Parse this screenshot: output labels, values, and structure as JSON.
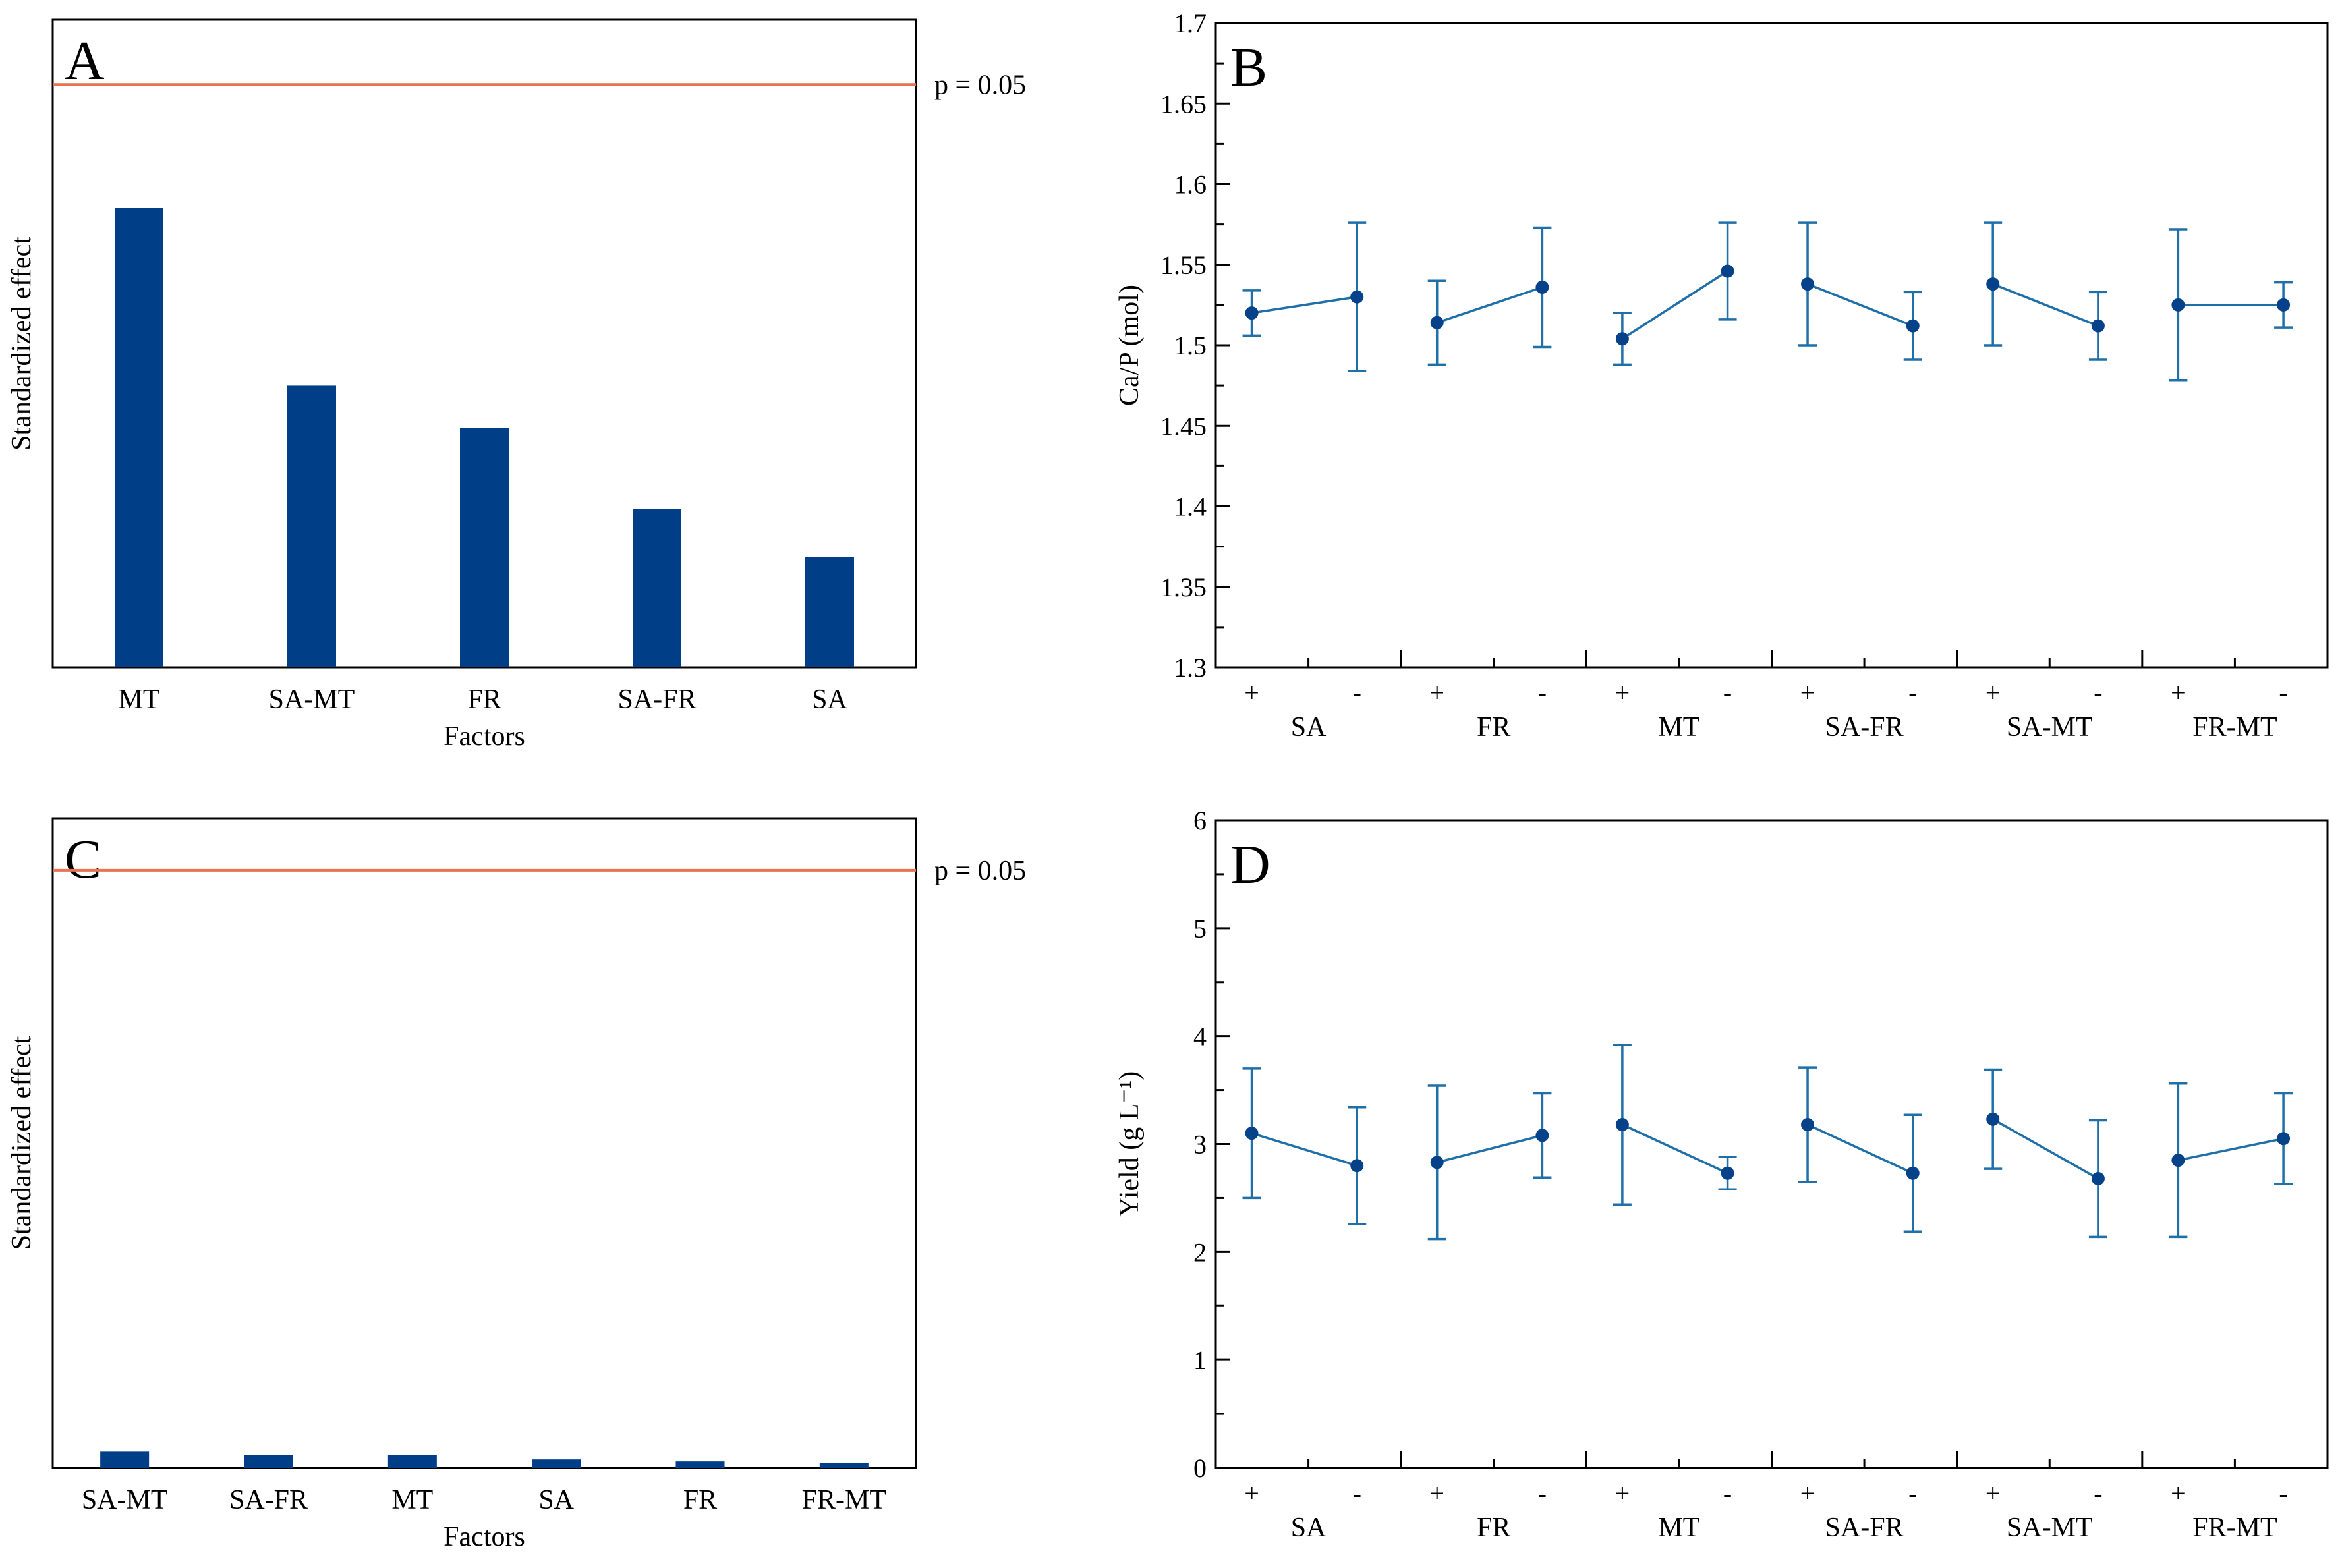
{
  "colors": {
    "bar": "#003f87",
    "threshold": "#e8734f",
    "series": "#1f6fa8",
    "marker": "#06428a"
  },
  "chart_data": [
    {
      "panel": "A",
      "type": "bar",
      "categories": [
        "MT",
        "SA-MT",
        "FR",
        "SA-FR",
        "SA"
      ],
      "values": [
        0.71,
        0.435,
        0.37,
        0.245,
        0.17
      ],
      "ylim": [
        0,
        1
      ],
      "threshold": {
        "value": 0.9,
        "label": "p = 0.05"
      },
      "xlabel": "Factors",
      "ylabel": "Standardized effect",
      "grid": false
    },
    {
      "panel": "B",
      "type": "line",
      "ylabel": "Ca/P (mol)",
      "ylim": [
        1.3,
        1.7
      ],
      "yticks": [
        "1.3",
        "1.35",
        "1.4",
        "1.45",
        "1.5",
        "1.55",
        "1.6",
        "1.65",
        "1.7"
      ],
      "groups": [
        "SA",
        "FR",
        "MT",
        "SA-FR",
        "SA-MT",
        "FR-MT"
      ],
      "levels": [
        "+",
        "-"
      ],
      "series": [
        {
          "group": "SA",
          "points": [
            {
              "y": 1.52,
              "lo": 1.506,
              "hi": 1.534
            },
            {
              "y": 1.53,
              "lo": 1.484,
              "hi": 1.576
            }
          ]
        },
        {
          "group": "FR",
          "points": [
            {
              "y": 1.514,
              "lo": 1.488,
              "hi": 1.54
            },
            {
              "y": 1.536,
              "lo": 1.499,
              "hi": 1.573
            }
          ]
        },
        {
          "group": "MT",
          "points": [
            {
              "y": 1.504,
              "lo": 1.488,
              "hi": 1.52
            },
            {
              "y": 1.546,
              "lo": 1.516,
              "hi": 1.576
            }
          ]
        },
        {
          "group": "SA-FR",
          "points": [
            {
              "y": 1.538,
              "lo": 1.5,
              "hi": 1.576
            },
            {
              "y": 1.512,
              "lo": 1.491,
              "hi": 1.533
            }
          ]
        },
        {
          "group": "SA-MT",
          "points": [
            {
              "y": 1.538,
              "lo": 1.5,
              "hi": 1.576
            },
            {
              "y": 1.512,
              "lo": 1.491,
              "hi": 1.533
            }
          ]
        },
        {
          "group": "FR-MT",
          "points": [
            {
              "y": 1.525,
              "lo": 1.478,
              "hi": 1.572
            },
            {
              "y": 1.525,
              "lo": 1.511,
              "hi": 1.539
            }
          ]
        }
      ],
      "grid": false
    },
    {
      "panel": "C",
      "type": "bar",
      "categories": [
        "SA-MT",
        "SA-FR",
        "MT",
        "SA",
        "FR",
        "FR-MT"
      ],
      "values": [
        0.025,
        0.02,
        0.02,
        0.013,
        0.01,
        0.008
      ],
      "ylim": [
        0,
        1
      ],
      "threshold": {
        "value": 0.92,
        "label": "p = 0.05"
      },
      "xlabel": "Factors",
      "ylabel": "Standardized effect",
      "grid": false
    },
    {
      "panel": "D",
      "type": "line",
      "ylabel": "Yield (g L⁻¹)",
      "ylim": [
        0,
        6
      ],
      "yticks": [
        "0",
        "1",
        "2",
        "3",
        "4",
        "5",
        "6"
      ],
      "groups": [
        "SA",
        "FR",
        "MT",
        "SA-FR",
        "SA-MT",
        "FR-MT"
      ],
      "levels": [
        "+",
        "-"
      ],
      "series": [
        {
          "group": "SA",
          "points": [
            {
              "y": 3.1,
              "lo": 2.5,
              "hi": 3.7
            },
            {
              "y": 2.8,
              "lo": 2.26,
              "hi": 3.34
            }
          ]
        },
        {
          "group": "FR",
          "points": [
            {
              "y": 2.83,
              "lo": 2.12,
              "hi": 3.54
            },
            {
              "y": 3.08,
              "lo": 2.69,
              "hi": 3.47
            }
          ]
        },
        {
          "group": "MT",
          "points": [
            {
              "y": 3.18,
              "lo": 2.44,
              "hi": 3.92
            },
            {
              "y": 2.73,
              "lo": 2.58,
              "hi": 2.88
            }
          ]
        },
        {
          "group": "SA-FR",
          "points": [
            {
              "y": 3.18,
              "lo": 2.65,
              "hi": 3.71
            },
            {
              "y": 2.73,
              "lo": 2.19,
              "hi": 3.27
            }
          ]
        },
        {
          "group": "SA-MT",
          "points": [
            {
              "y": 3.23,
              "lo": 2.77,
              "hi": 3.69
            },
            {
              "y": 2.68,
              "lo": 2.14,
              "hi": 3.22
            }
          ]
        },
        {
          "group": "FR-MT",
          "points": [
            {
              "y": 2.85,
              "lo": 2.14,
              "hi": 3.56
            },
            {
              "y": 3.05,
              "lo": 2.63,
              "hi": 3.47
            }
          ]
        }
      ],
      "grid": false
    }
  ]
}
